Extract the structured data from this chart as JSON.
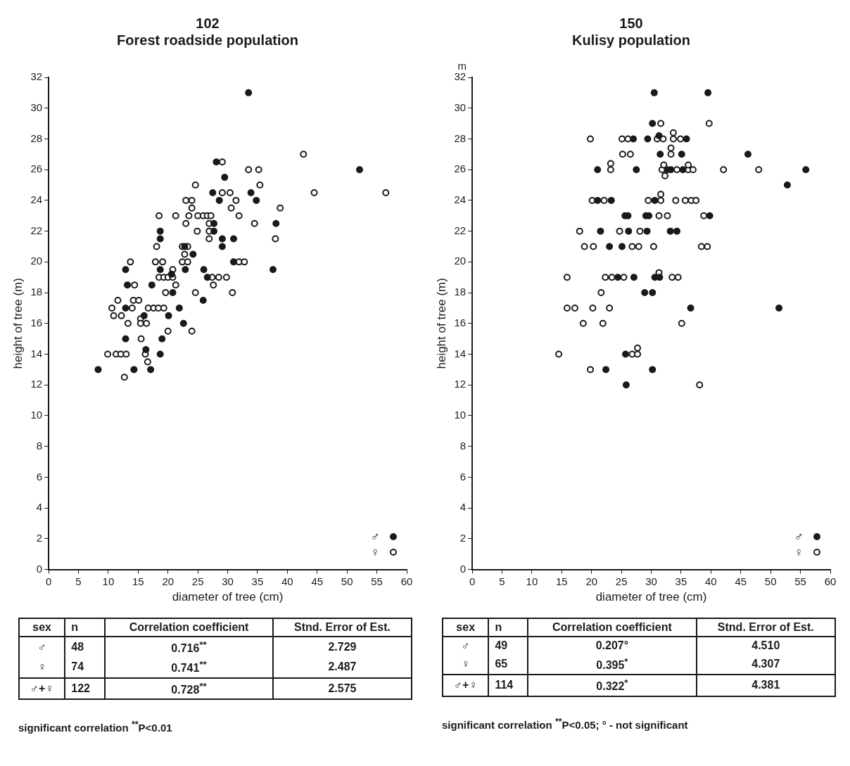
{
  "chart_data": [
    {
      "type": "scatter",
      "title": "102\nForest roadside population",
      "xlabel": "diameter of tree (cm)",
      "ylabel": "height of tree (m)",
      "xlim": [
        0,
        60
      ],
      "xticks": [
        0,
        5,
        10,
        15,
        20,
        25,
        30,
        35,
        40,
        45,
        50,
        55,
        60
      ],
      "ylim": [
        0,
        32
      ],
      "yticks": [
        0,
        2,
        4,
        6,
        8,
        10,
        12,
        14,
        16,
        18,
        20,
        22,
        24,
        26,
        28,
        30,
        32
      ],
      "marker": "circle",
      "legend": "bottom right",
      "series": [
        {
          "name": "♂",
          "color": "#1a1a1a",
          "x": [
            33.5,
            28.1,
            29.5,
            27.5,
            33.9,
            28.6,
            34.8,
            27.7,
            38.1,
            18.7,
            27.7,
            18.7,
            29.1,
            31.0,
            29.1,
            22.8,
            24.2,
            31.0,
            12.9,
            18.7,
            22.9,
            26.0,
            37.6,
            20.6,
            26.6,
            13.2,
            17.3,
            20.8,
            25.9,
            12.9,
            21.9,
            16.0,
            20.1,
            22.6,
            12.9,
            19.0,
            16.3,
            18.7,
            8.3,
            14.3,
            17.1,
            52.1
          ],
          "values": [
            31,
            26.5,
            25.5,
            24.5,
            24.5,
            24,
            24,
            22.5,
            22.5,
            22,
            22,
            21.5,
            21.5,
            21.5,
            21,
            21,
            20.5,
            20,
            19.5,
            19.5,
            19.5,
            19.5,
            19.5,
            19.2,
            19,
            18.5,
            18.5,
            18,
            17.5,
            17,
            17,
            16.5,
            16.5,
            16,
            15,
            15,
            14.3,
            14,
            13,
            13,
            13,
            26
          ]
        },
        {
          "name": "♀",
          "color": "#1a1a1a",
          "x": [
            42.7,
            29.1,
            33.5,
            35.2,
            35.4,
            24.6,
            29.1,
            30.4,
            44.5,
            56.5,
            23,
            24,
            31.4,
            24,
            30.6,
            38.8,
            18.5,
            21.3,
            23.5,
            25,
            25.9,
            26.6,
            27.2,
            31.9,
            23,
            26.9,
            34.5,
            24.9,
            26.9,
            26.9,
            38,
            18.1,
            22.4,
            23.3,
            22.8,
            13.7,
            17.9,
            19.1,
            22.4,
            23.3,
            31.9,
            32.8,
            20.8,
            18.5,
            19.3,
            20,
            20.8,
            27.4,
            28.5,
            29.8,
            21.3,
            14.4,
            27.6,
            19.6,
            24.6,
            30.8,
            11.6,
            14.2,
            15.1,
            10.6,
            14,
            16.7,
            17.6,
            18.4,
            19.3,
            10.9,
            12.2,
            15.4,
            13.3,
            15.4,
            16.4,
            20,
            24,
            15.5,
            9.9,
            11.3,
            12.1,
            13,
            16.2,
            16.6,
            12.7
          ],
          "values": [
            27,
            26.5,
            26,
            26,
            25,
            25,
            24.5,
            24.5,
            24.5,
            24.5,
            24,
            24,
            24,
            23.5,
            23.5,
            23.5,
            23,
            23,
            23,
            23,
            23,
            23,
            23,
            23,
            22.5,
            22.5,
            22.5,
            22,
            22,
            21.5,
            21.5,
            21,
            21,
            21,
            20.5,
            20,
            20,
            20,
            20,
            20,
            20,
            20,
            19.5,
            19,
            19,
            19,
            19,
            19,
            19,
            19,
            18.5,
            18.5,
            18.5,
            18,
            18,
            18,
            17.5,
            17.5,
            17.5,
            17,
            17,
            17,
            17,
            17,
            17,
            16.5,
            16.5,
            16.3,
            16,
            16,
            16,
            15.5,
            15.5,
            15,
            14,
            14,
            14,
            14,
            14,
            13.5,
            12.5
          ]
        }
      ],
      "annotations": [
        "sex",
        "n",
        "Correlation coefficient",
        "Stnd. Error of Est.",
        "♂",
        "48",
        "0.716$^{**}$",
        "2.729",
        "♀",
        "74",
        "0.741$^{**}$",
        "2.487",
        "♂+♀",
        "122",
        "0.728$^{**}$",
        "2.575",
        "significant correlation $^{**}$P<0.01"
      ]
    },
    {
      "type": "scatter",
      "title": "150\nKulisy population",
      "xlabel": "diameter of tree (cm)",
      "ylabel": "height of tree (m)",
      "xlim": [
        0,
        60
      ],
      "xticks": [
        0,
        5,
        10,
        15,
        20,
        25,
        30,
        35,
        40,
        45,
        50,
        55,
        60
      ],
      "ylim": [
        0,
        32
      ],
      "yticks": [
        0,
        2,
        4,
        6,
        8,
        10,
        12,
        14,
        16,
        18,
        20,
        22,
        24,
        26,
        28,
        30,
        32
      ],
      "marker": "circle",
      "legend": "bottom right",
      "series": [
        {
          "name": "♂",
          "color": "#1a1a1a",
          "x": [
            30.5,
            39.5,
            30.2,
            27.0,
            29.4,
            31.3,
            35.9,
            31.5,
            35.1,
            46.2,
            21.0,
            27.5,
            32.7,
            33.3,
            35.3,
            52.8,
            55.9,
            21.0,
            23.3,
            30.6,
            25.6,
            26.1,
            29.1,
            29.6,
            39.8,
            21.5,
            26.2,
            29.3,
            33.2,
            34.3,
            23.0,
            25.1,
            24.4,
            27.1,
            30.6,
            31.4,
            28.9,
            30.2,
            36.6,
            51.4,
            25.7,
            22.4,
            30.2,
            25.8
          ],
          "values": [
            31,
            31,
            29,
            28,
            28,
            28.2,
            28,
            27,
            27,
            27,
            26,
            26,
            26,
            26,
            26,
            25,
            26,
            24,
            24,
            24,
            23,
            23,
            23,
            23,
            23,
            22,
            22,
            22,
            22,
            22,
            21,
            21,
            19,
            19,
            19,
            19,
            18,
            18,
            17,
            17,
            14,
            13,
            13,
            12
          ]
        },
        {
          "name": "♀",
          "color": "#1a1a1a",
          "x": [
            31.6,
            39.7,
            19.8,
            25.1,
            26.1,
            31.0,
            32.0,
            33.7,
            33.7,
            34.9,
            25.2,
            26.5,
            33.3,
            33.3,
            23.2,
            23.2,
            31.8,
            32.1,
            34.3,
            36.2,
            36.2,
            37.0,
            32.3,
            42.1,
            48.0,
            20.1,
            22.1,
            29.5,
            31.6,
            31.6,
            34.1,
            35.7,
            36.7,
            37.5,
            31.3,
            32.7,
            38.8,
            18.0,
            24.7,
            28.1,
            18.8,
            20.3,
            26.8,
            27.9,
            30.4,
            38.4,
            39.4,
            15.9,
            22.3,
            23.4,
            25.4,
            31.3,
            33.5,
            34.5,
            21.6,
            15.9,
            17.2,
            20.2,
            23.0,
            18.6,
            21.9,
            35.1,
            14.5,
            26.8,
            27.7,
            27.7,
            19.8,
            38.1
          ],
          "values": [
            29,
            29,
            28,
            28,
            28,
            28,
            28,
            28,
            28.4,
            28,
            27,
            27,
            27,
            27.4,
            26,
            26.4,
            26,
            26.3,
            26,
            26,
            26.3,
            26,
            25.6,
            26,
            26,
            24,
            24,
            24,
            24,
            24.4,
            24,
            24,
            24,
            24,
            23,
            23,
            23,
            22,
            22,
            22,
            21,
            21,
            21,
            21,
            21,
            21,
            21,
            19,
            19,
            19,
            19,
            19.3,
            19,
            19,
            18,
            17,
            17,
            17,
            17,
            16,
            16,
            16,
            14,
            14,
            14,
            14.4,
            13,
            12
          ]
        }
      ],
      "annotations": [
        "sex",
        "n",
        "Correlation coefficient",
        "Stnd. Error of Est.",
        "♂",
        "49",
        "0.207°",
        "4.510",
        "♀",
        "65",
        "0.395$^{*}$",
        "4.307",
        "♂+♀",
        "114",
        "0.322$^{*}$",
        "4.381",
        "significant correlation $^{**}$P<0.05; ° - not significant",
        "m"
      ]
    }
  ]
}
